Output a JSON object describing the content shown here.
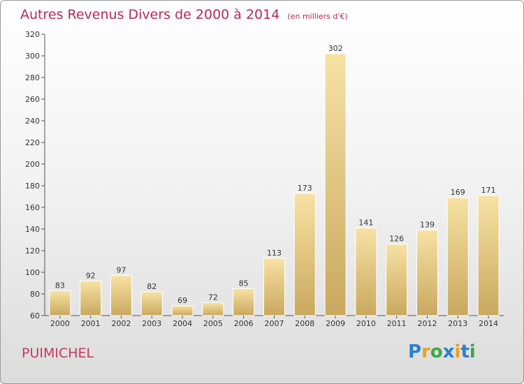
{
  "title": "Autres Revenus Divers de 2000 à 2014",
  "unit_note": "(en milliers d'€)",
  "commune": "PUIMICHEL",
  "logo": {
    "letters": [
      {
        "ch": "P",
        "color": "#2c7fcf"
      },
      {
        "ch": "r",
        "color": "#e8a21c"
      },
      {
        "ch": "o",
        "color": "#3aa845"
      },
      {
        "ch": "x",
        "color": "#2c7fcf"
      },
      {
        "ch": "i",
        "color": "#e8a21c"
      },
      {
        "ch": "t",
        "color": "#2c7fcf"
      },
      {
        "ch": "i",
        "color": "#3aa845"
      }
    ]
  },
  "chart_data": {
    "type": "bar",
    "categories": [
      "2000",
      "2001",
      "2002",
      "2003",
      "2004",
      "2005",
      "2006",
      "2007",
      "2008",
      "2009",
      "2010",
      "2011",
      "2012",
      "2013",
      "2014"
    ],
    "values": [
      83,
      92,
      97,
      82,
      69,
      72,
      85,
      113,
      173,
      302,
      141,
      126,
      139,
      169,
      171
    ],
    "ylim": [
      60,
      320
    ],
    "yticks": [
      60,
      80,
      100,
      120,
      140,
      160,
      180,
      200,
      220,
      240,
      260,
      280,
      300,
      320
    ],
    "grid": false,
    "bar_color_light": "#f7e2a4",
    "bar_color_dark": "#c9a85e",
    "title_color": "#b4285a"
  }
}
